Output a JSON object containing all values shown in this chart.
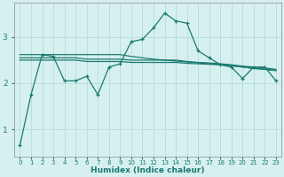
{
  "x": [
    0,
    1,
    2,
    3,
    4,
    5,
    6,
    7,
    8,
    9,
    10,
    11,
    12,
    13,
    14,
    15,
    16,
    17,
    18,
    19,
    20,
    21,
    22,
    23
  ],
  "line1": [
    0.65,
    1.75,
    2.62,
    2.58,
    2.05,
    2.05,
    2.15,
    1.75,
    2.35,
    2.42,
    2.9,
    2.95,
    3.2,
    3.52,
    3.35,
    3.3,
    2.7,
    2.55,
    2.4,
    2.35,
    2.1,
    2.35,
    2.35,
    2.05
  ],
  "line2": [
    2.62,
    2.62,
    2.62,
    2.62,
    2.62,
    2.62,
    2.62,
    2.62,
    2.62,
    2.62,
    2.58,
    2.55,
    2.52,
    2.5,
    2.48,
    2.46,
    2.44,
    2.42,
    2.4,
    2.38,
    2.35,
    2.32,
    2.3,
    2.28
  ],
  "line3": [
    2.55,
    2.55,
    2.55,
    2.55,
    2.55,
    2.55,
    2.52,
    2.52,
    2.52,
    2.52,
    2.5,
    2.5,
    2.5,
    2.5,
    2.5,
    2.47,
    2.45,
    2.44,
    2.42,
    2.4,
    2.37,
    2.35,
    2.33,
    2.3
  ],
  "line4": [
    2.5,
    2.5,
    2.5,
    2.5,
    2.5,
    2.5,
    2.47,
    2.47,
    2.47,
    2.47,
    2.45,
    2.45,
    2.45,
    2.45,
    2.45,
    2.43,
    2.42,
    2.41,
    2.4,
    2.38,
    2.35,
    2.32,
    2.3,
    2.27
  ],
  "line_color": "#1a7a6e",
  "bg_color": "#d6f0f0",
  "grid_color": "#b8dede",
  "xlabel": "Humidex (Indice chaleur)",
  "yticks": [
    1,
    2,
    3
  ],
  "ylim": [
    0.4,
    3.75
  ],
  "xlim": [
    -0.5,
    23.5
  ]
}
